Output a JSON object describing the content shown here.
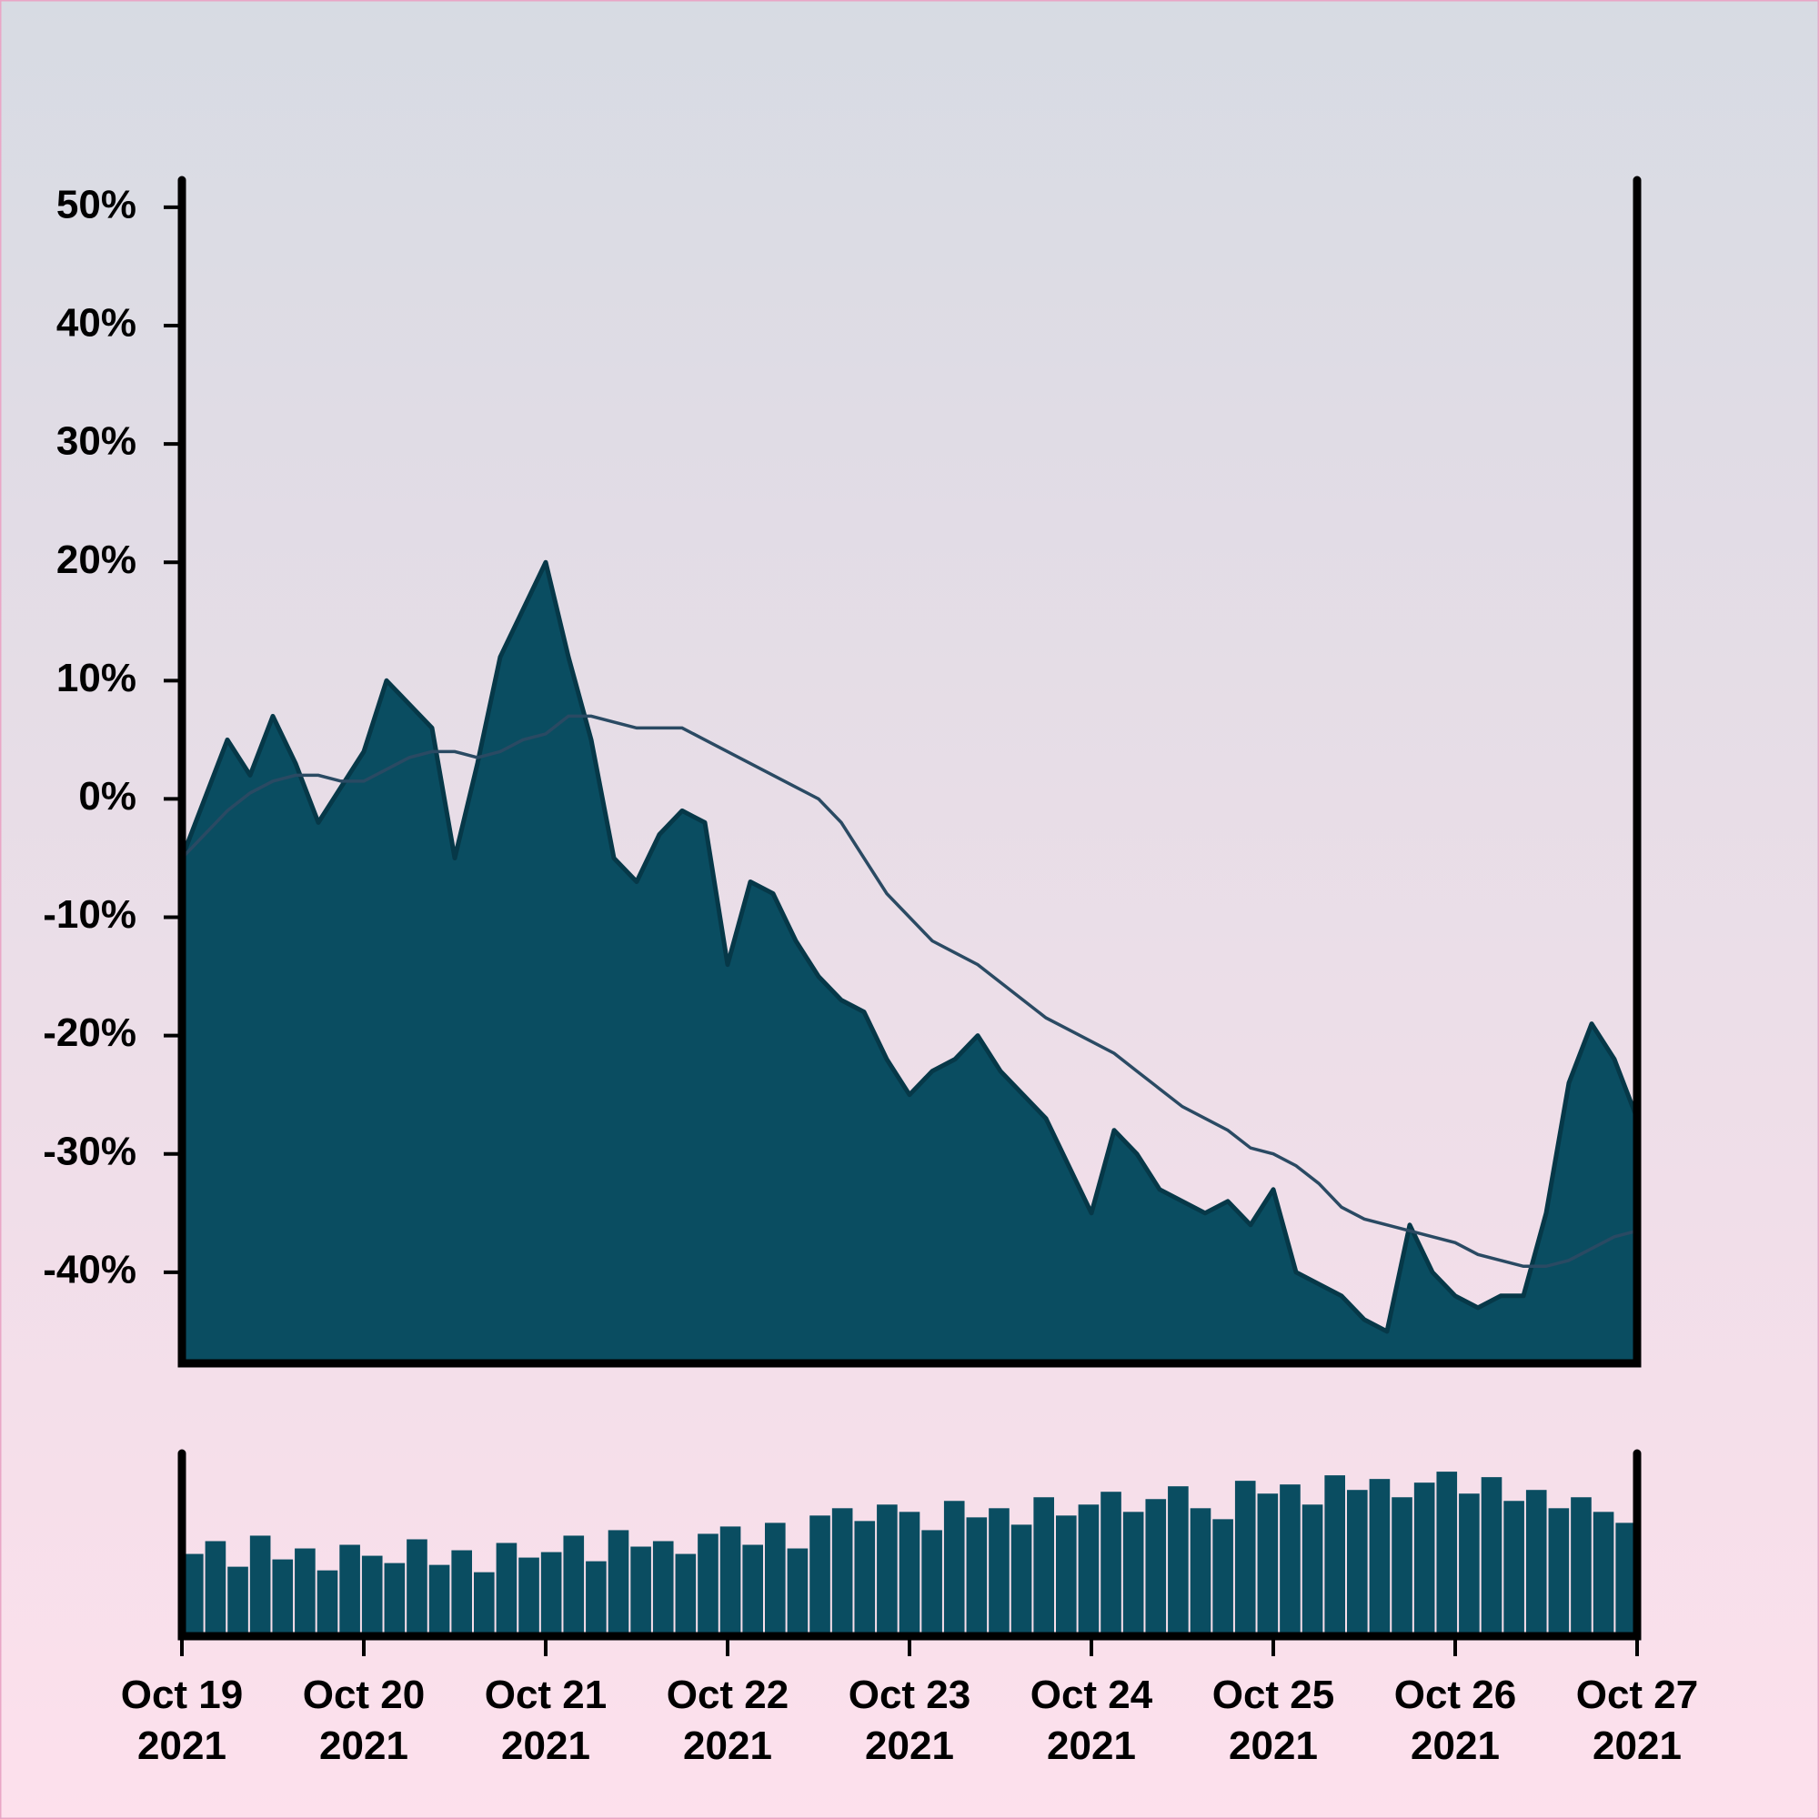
{
  "chart_data": [
    {
      "type": "area",
      "categories": [
        "Oct 19 2021",
        null,
        null,
        null,
        null,
        null,
        null,
        null,
        "Oct 20 2021",
        null,
        null,
        null,
        null,
        null,
        null,
        null,
        "Oct 21 2021",
        null,
        null,
        null,
        null,
        null,
        null,
        null,
        "Oct 22 2021",
        null,
        null,
        null,
        null,
        null,
        null,
        null,
        "Oct 23 2021",
        null,
        null,
        null,
        null,
        null,
        null,
        null,
        "Oct 24 2021",
        null,
        null,
        null,
        null,
        null,
        null,
        null,
        "Oct 25 2021",
        null,
        null,
        null,
        null,
        null,
        null,
        null,
        "Oct 26 2021",
        null,
        null,
        null,
        null,
        null,
        null,
        null,
        "Oct 27 2021"
      ],
      "series": [
        {
          "color": "#0a4d61",
          "values": [
            -5,
            0,
            5,
            2,
            7,
            3,
            -2,
            1,
            4,
            10,
            8,
            6,
            -5,
            3,
            12,
            16,
            20,
            12,
            5,
            -5,
            -7,
            -3,
            -1,
            -2,
            -14,
            -7,
            -8,
            -12,
            -15,
            -17,
            -18,
            -22,
            -25,
            -23,
            -22,
            -20,
            -23,
            -25,
            -27,
            -31,
            -35,
            -28,
            -30,
            -33,
            -34,
            -35,
            -34,
            -36,
            -33,
            -40,
            -41,
            -42,
            -44,
            -45,
            -36,
            -40,
            -42,
            -43,
            -42,
            -42,
            -35,
            -24,
            -19,
            -22,
            -27
          ]
        },
        {
          "color": "#2a4a63",
          "values": [
            -5,
            -3,
            -1,
            0.5,
            1.5,
            2,
            2,
            1.5,
            1.5,
            2.5,
            3.5,
            4,
            4,
            3.5,
            4,
            5,
            5.5,
            7,
            7,
            6.5,
            6,
            6,
            6,
            5,
            4,
            3,
            2,
            1,
            0,
            -2,
            -5,
            -8,
            -10,
            -12,
            -13,
            -14,
            -15.5,
            -17,
            -18.5,
            -19.5,
            -20.5,
            -21.5,
            -23,
            -24.5,
            -26,
            -27,
            -28,
            -29.5,
            -30,
            -31,
            -32.5,
            -34.5,
            -35.5,
            -36,
            -36.5,
            -37,
            -37.5,
            -38.5,
            -39,
            -39.5,
            -39.5,
            -39,
            -38,
            -37,
            -36.5
          ]
        }
      ],
      "ylim": [
        -47.7,
        52.3
      ],
      "yticks": [
        {
          "value": -40,
          "label": "-40%"
        },
        {
          "value": -30,
          "label": "-30%"
        },
        {
          "value": -20,
          "label": "-20%"
        },
        {
          "value": -10,
          "label": "-10%"
        },
        {
          "value": 0,
          "label": "0%"
        },
        {
          "value": 10,
          "label": "10%"
        },
        {
          "value": 20,
          "label": "20%"
        },
        {
          "value": 30,
          "label": "30%"
        },
        {
          "value": 40,
          "label": "40%"
        },
        {
          "value": 50,
          "label": "50%"
        }
      ]
    },
    {
      "type": "bar",
      "color": "#0a4d61",
      "values": [
        45,
        52,
        38,
        55,
        42,
        48,
        36,
        50,
        44,
        40,
        53,
        39,
        47,
        35,
        51,
        43,
        46,
        55,
        41,
        58,
        49,
        52,
        45,
        56,
        60,
        50,
        62,
        48,
        66,
        70,
        63,
        72,
        68,
        58,
        74,
        65,
        70,
        61,
        76,
        66,
        72,
        79,
        68,
        75,
        82,
        70,
        64,
        85,
        78,
        83,
        72,
        88,
        80,
        86,
        76,
        84,
        90,
        78,
        87,
        74,
        80,
        70,
        76,
        68,
        62
      ],
      "ylim": [
        0,
        100
      ]
    }
  ]
}
